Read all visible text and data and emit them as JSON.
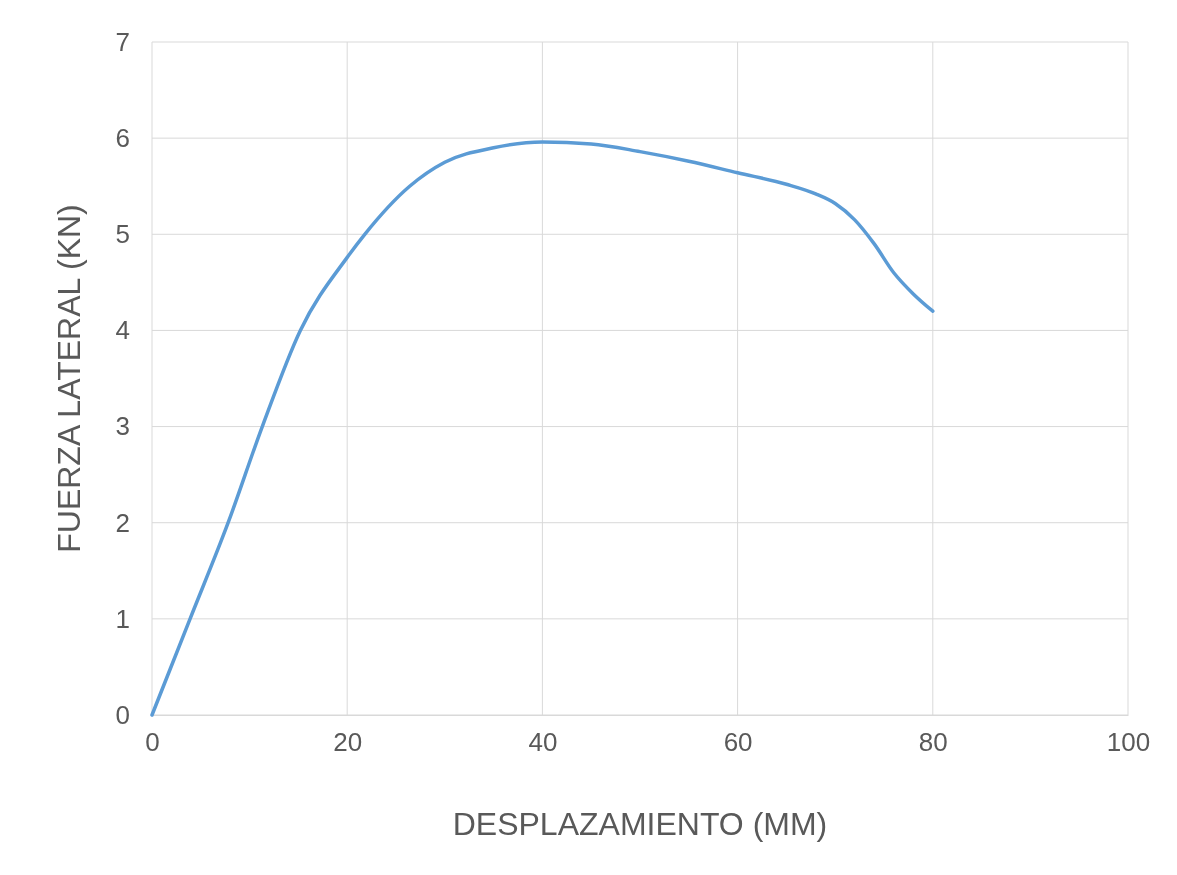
{
  "chart_data": {
    "type": "line",
    "xlabel": "DESPLAZAMIENTO  (MM)",
    "ylabel": "FUERZA LATERAL (KN)",
    "xlim": [
      0,
      100
    ],
    "xticks": [
      0,
      20,
      40,
      60,
      80,
      100
    ],
    "ylim": [
      0,
      7
    ],
    "yticks": [
      0,
      1,
      2,
      3,
      4,
      5,
      6,
      7
    ],
    "grid": true,
    "series": [
      {
        "color": "#5b9bd5",
        "x": [
          0,
          3.9,
          7.8,
          11.3,
          15.2,
          20,
          21.8,
          26.4,
          30,
          35,
          40,
          45,
          50,
          55,
          60,
          65,
          68,
          70,
          72,
          74,
          76,
          78,
          80
        ],
        "values": [
          0,
          1,
          2,
          3,
          4,
          4.76,
          5,
          5.5,
          5.75,
          5.9,
          5.96,
          5.94,
          5.86,
          5.76,
          5.64,
          5.52,
          5.42,
          5.32,
          5.15,
          4.9,
          4.6,
          4.38,
          4.2
        ]
      }
    ]
  }
}
